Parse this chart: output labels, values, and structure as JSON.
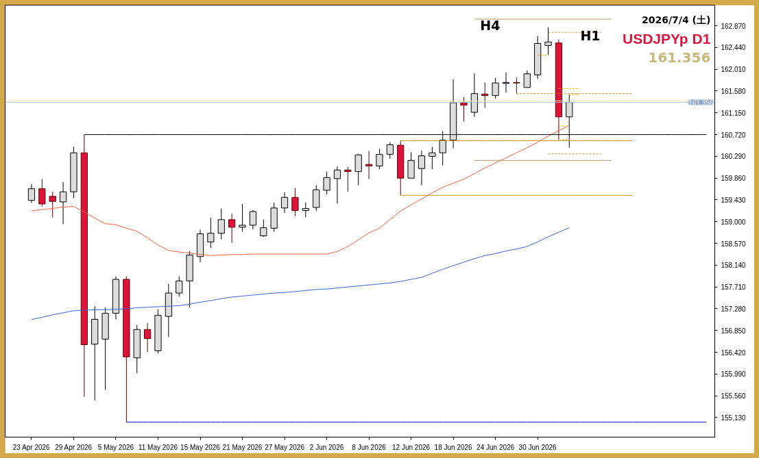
{
  "chart_data": {
    "type": "candlestick",
    "title": "USDJPYp D1",
    "subtitle": "2026/7/4 (土)",
    "annotations": [
      "161.356",
      "H4",
      "H1"
    ],
    "categories": [
      "23 Apr 2026",
      null,
      null,
      null,
      "29 Apr 2026",
      null,
      null,
      null,
      "5 May 2026",
      null,
      null,
      null,
      "11 May 2026",
      null,
      null,
      null,
      "15 May 2026",
      null,
      null,
      null,
      "21 May 2026",
      null,
      null,
      null,
      "27 May 2026",
      null,
      null,
      null,
      "2 Jun 2026",
      null,
      null,
      null,
      "8 Jun 2026",
      null,
      null,
      null,
      "12 Jun 2026",
      null,
      null,
      null,
      "18 Jun 2026",
      null,
      null,
      null,
      "24 Jun 2026",
      null,
      null,
      null,
      "30 Jun 2026",
      null,
      null,
      null,
      null,
      null,
      null,
      null,
      null,
      null,
      null,
      null,
      null,
      null,
      null,
      null,
      null
    ],
    "ohlc": [
      [
        159.42,
        159.74,
        159.37,
        159.65
      ],
      [
        159.65,
        159.84,
        159.3,
        159.35
      ],
      [
        159.5,
        159.59,
        159.09,
        159.4
      ],
      [
        159.39,
        159.78,
        158.95,
        159.59
      ],
      [
        159.59,
        160.48,
        159.46,
        160.36
      ],
      [
        160.36,
        160.72,
        155.54,
        156.57
      ],
      [
        156.58,
        157.33,
        155.47,
        157.07
      ],
      [
        156.68,
        157.31,
        155.68,
        157.19
      ],
      [
        157.19,
        157.92,
        157.07,
        157.86
      ],
      [
        157.86,
        157.92,
        155.04,
        156.33
      ],
      [
        156.31,
        156.96,
        156.01,
        156.87
      ],
      [
        156.87,
        157.0,
        156.42,
        156.69
      ],
      [
        156.45,
        157.27,
        156.4,
        157.15
      ],
      [
        157.13,
        157.77,
        156.72,
        157.59
      ],
      [
        157.59,
        157.92,
        157.52,
        157.83
      ],
      [
        157.83,
        158.42,
        157.3,
        158.34
      ],
      [
        158.31,
        158.84,
        158.2,
        158.76
      ],
      [
        158.6,
        159.08,
        158.48,
        158.77
      ],
      [
        158.77,
        159.26,
        158.65,
        159.04
      ],
      [
        159.04,
        159.16,
        158.58,
        158.89
      ],
      [
        158.89,
        159.35,
        158.8,
        158.93
      ],
      [
        158.93,
        159.23,
        158.85,
        159.2
      ],
      [
        158.72,
        159.04,
        158.7,
        158.88
      ],
      [
        158.87,
        159.38,
        158.8,
        159.27
      ],
      [
        159.27,
        159.58,
        159.17,
        159.48
      ],
      [
        159.48,
        159.66,
        159.11,
        159.22
      ],
      [
        159.22,
        159.38,
        159.09,
        159.26
      ],
      [
        159.28,
        159.72,
        159.21,
        159.63
      ],
      [
        159.62,
        159.99,
        159.54,
        159.87
      ],
      [
        159.85,
        160.09,
        159.36,
        160.02
      ],
      [
        160.02,
        160.08,
        159.59,
        159.99
      ],
      [
        159.99,
        160.34,
        159.72,
        160.32
      ],
      [
        160.13,
        160.4,
        159.84,
        160.1
      ],
      [
        160.1,
        160.44,
        160.04,
        160.33
      ],
      [
        160.33,
        160.57,
        160.24,
        160.52
      ],
      [
        160.51,
        160.6,
        159.52,
        159.86
      ],
      [
        159.86,
        160.37,
        159.86,
        160.21
      ],
      [
        160.05,
        160.4,
        159.72,
        160.3
      ],
      [
        160.29,
        160.48,
        160.04,
        160.36
      ],
      [
        160.36,
        160.79,
        160.11,
        160.61
      ],
      [
        160.61,
        161.81,
        160.45,
        161.35
      ],
      [
        161.35,
        161.46,
        160.98,
        161.3
      ],
      [
        161.16,
        161.93,
        161.07,
        161.53
      ],
      [
        161.52,
        161.75,
        161.25,
        161.49
      ],
      [
        161.49,
        161.84,
        161.43,
        161.74
      ],
      [
        161.73,
        161.95,
        161.55,
        161.75
      ],
      [
        161.75,
        161.85,
        161.53,
        161.74
      ],
      [
        161.65,
        161.99,
        161.65,
        161.92
      ],
      [
        161.9,
        162.67,
        161.82,
        162.52
      ],
      [
        162.48,
        162.84,
        162.29,
        162.55
      ],
      [
        162.53,
        162.6,
        160.62,
        161.07
      ],
      [
        161.07,
        161.51,
        160.46,
        161.356
      ],
      null,
      null,
      null,
      null,
      null,
      null,
      null,
      null,
      null,
      null,
      null,
      null,
      null
    ],
    "colors": [
      "#dcdcdc",
      "#dc143c",
      "#dc143c",
      "#dcdcdc",
      "#dcdcdc",
      "#dc143c",
      "#dcdcdc",
      "#dcdcdc",
      "#dcdcdc",
      "#dc143c",
      "#dcdcdc",
      "#dc143c",
      "#dcdcdc",
      "#dcdcdc",
      "#dcdcdc",
      "#dcdcdc",
      "#dcdcdc",
      "#dcdcdc",
      "#dcdcdc",
      "#dc143c",
      "#dcdcdc",
      "#dcdcdc",
      "#dcdcdc",
      "#dcdcdc",
      "#dcdcdc",
      "#dc143c",
      "#dcdcdc",
      "#dcdcdc",
      "#dcdcdc",
      "#dcdcdc",
      "#dc143c",
      "#dcdcdc",
      "#dc143c",
      "#dcdcdc",
      "#dcdcdc",
      "#dc143c",
      "#dcdcdc",
      "#dcdcdc",
      "#dcdcdc",
      "#dcdcdc",
      "#dcdcdc",
      "#dc143c",
      "#dcdcdc",
      "#dc143c",
      "#dcdcdc",
      "#dcdcdc",
      "#dc143c",
      "#dcdcdc",
      "#dcdcdc",
      "#dcdcdc",
      "#dc143c",
      "#dcdcdc",
      null,
      null,
      null,
      null,
      null,
      null,
      null,
      null,
      null,
      null,
      null,
      null,
      null
    ],
    "series": [
      {
        "type": "line",
        "color": "#ff5f3f",
        "values": [
          159.21,
          159.24,
          159.26,
          159.29,
          159.3,
          159.19,
          159.07,
          158.96,
          158.94,
          158.87,
          158.81,
          158.68,
          158.54,
          158.43,
          158.4,
          158.38,
          158.35,
          158.33,
          158.34,
          158.35,
          158.35,
          158.36,
          158.36,
          158.36,
          158.36,
          158.36,
          158.36,
          158.36,
          158.36,
          158.41,
          158.51,
          158.64,
          158.78,
          158.87,
          159.04,
          159.21,
          159.33,
          159.45,
          159.57,
          159.68,
          159.76,
          159.84,
          159.95,
          160.06,
          160.16,
          160.26,
          160.36,
          160.46,
          160.57,
          160.69,
          160.8,
          160.9,
          null,
          null,
          null,
          null,
          null,
          null,
          null,
          null,
          null,
          null,
          null,
          null,
          null
        ]
      },
      {
        "type": "line",
        "color": "#3c64dc",
        "values": [
          157.07,
          157.11,
          157.16,
          157.2,
          157.24,
          157.25,
          157.26,
          157.26,
          157.27,
          157.28,
          157.3,
          157.31,
          157.32,
          157.33,
          157.34,
          157.37,
          157.41,
          157.44,
          157.48,
          157.51,
          157.53,
          157.55,
          157.57,
          157.59,
          157.6,
          157.62,
          157.64,
          157.66,
          157.67,
          157.69,
          157.71,
          157.73,
          157.75,
          157.77,
          157.79,
          157.82,
          157.86,
          157.9,
          157.98,
          158.06,
          158.13,
          158.2,
          158.27,
          158.33,
          158.37,
          158.42,
          158.46,
          158.51,
          158.6,
          158.7,
          158.79,
          158.88,
          null,
          null,
          null,
          null,
          null,
          null,
          null,
          null,
          null,
          null,
          null,
          null,
          null
        ]
      },
      {
        "type": "line",
        "color": "#000000",
        "values": [
          null,
          null,
          null,
          null,
          null,
          160.72,
          160.72,
          160.72,
          160.72,
          160.72,
          160.72,
          160.72,
          160.72,
          160.72,
          160.72,
          160.72,
          160.72,
          160.72,
          160.72,
          160.72,
          160.72,
          160.72,
          160.72,
          160.72,
          160.72,
          160.72,
          160.72,
          160.72,
          160.72,
          160.72,
          160.72,
          160.72,
          160.72,
          160.72,
          160.72,
          160.72,
          160.72,
          160.72,
          160.72,
          160.72,
          160.72,
          160.72,
          160.72,
          160.72,
          160.72,
          160.72,
          160.72,
          160.72,
          160.72,
          160.72,
          160.72,
          160.72,
          160.72,
          160.72,
          160.72,
          160.72,
          160.72,
          160.72,
          160.72,
          160.72,
          160.72,
          160.72,
          160.72,
          160.72,
          160.72
        ]
      },
      {
        "type": "line",
        "color": "#0000c8",
        "values": [
          null,
          null,
          null,
          null,
          null,
          null,
          null,
          null,
          null,
          155.04,
          155.04,
          155.04,
          155.04,
          155.04,
          155.04,
          155.04,
          155.04,
          155.04,
          155.04,
          155.04,
          155.04,
          155.04,
          155.04,
          155.04,
          155.04,
          155.04,
          155.04,
          155.04,
          155.04,
          155.04,
          155.04,
          155.04,
          155.04,
          155.04,
          155.04,
          155.04,
          155.04,
          155.04,
          155.04,
          155.04,
          155.04,
          155.04,
          155.04,
          155.04,
          155.04,
          155.04,
          155.04,
          155.04,
          155.04,
          155.04,
          155.04,
          155.04,
          155.04,
          155.04,
          155.04,
          155.04,
          155.04,
          155.04,
          155.04,
          155.04,
          155.04,
          155.04,
          155.04,
          155.04,
          155.04
        ]
      },
      {
        "type": "line",
        "color": "#c8961e",
        "values": [
          null,
          null,
          null,
          null,
          null,
          null,
          null,
          null,
          null,
          null,
          null,
          null,
          null,
          null,
          null,
          null,
          null,
          null,
          null,
          null,
          null,
          null,
          null,
          null,
          null,
          null,
          null,
          null,
          null,
          null,
          null,
          null,
          null,
          null,
          null,
          160.6,
          160.6,
          160.6,
          160.6,
          160.6,
          160.6,
          160.6,
          160.6,
          160.6,
          160.6,
          160.6,
          160.6,
          160.6,
          160.6,
          160.6,
          160.6,
          160.6,
          160.6,
          160.6,
          160.6,
          160.6,
          160.6,
          160.6,
          null,
          null,
          null,
          null,
          null,
          null,
          null
        ]
      },
      {
        "type": "line",
        "color": "#c8961e",
        "values": [
          null,
          null,
          null,
          null,
          null,
          null,
          null,
          null,
          null,
          null,
          null,
          null,
          null,
          null,
          null,
          null,
          null,
          null,
          null,
          null,
          null,
          null,
          null,
          null,
          null,
          null,
          null,
          null,
          null,
          null,
          null,
          null,
          null,
          null,
          null,
          159.52,
          159.52,
          159.52,
          159.52,
          159.52,
          159.52,
          159.52,
          159.52,
          159.52,
          159.52,
          159.52,
          159.52,
          159.52,
          159.52,
          159.52,
          159.52,
          159.52,
          159.52,
          159.52,
          159.52,
          159.52,
          159.52,
          159.52,
          null,
          null,
          null,
          null,
          null,
          null,
          null
        ]
      },
      {
        "type": "line",
        "color": "#b8956a",
        "values": [
          null,
          null,
          null,
          null,
          null,
          null,
          null,
          null,
          null,
          null,
          null,
          null,
          null,
          null,
          null,
          null,
          null,
          null,
          null,
          null,
          null,
          null,
          null,
          null,
          null,
          null,
          null,
          null,
          null,
          null,
          null,
          null,
          null,
          null,
          null,
          null,
          null,
          null,
          null,
          null,
          null,
          null,
          163.0,
          163.0,
          163.0,
          163.0,
          163.0,
          163.0,
          163.0,
          163.0,
          163.0,
          163.0,
          163.0,
          163.0,
          163.0,
          163.0,
          null,
          null,
          null,
          null,
          null,
          null,
          null,
          null,
          null
        ]
      },
      {
        "type": "line",
        "color": "#b8956a",
        "values": [
          null,
          null,
          null,
          null,
          null,
          null,
          null,
          null,
          null,
          null,
          null,
          null,
          null,
          null,
          null,
          null,
          null,
          null,
          null,
          null,
          null,
          null,
          null,
          null,
          null,
          null,
          null,
          null,
          null,
          null,
          null,
          null,
          null,
          null,
          null,
          null,
          null,
          null,
          null,
          null,
          null,
          null,
          160.21,
          160.21,
          160.21,
          160.21,
          160.21,
          160.21,
          160.21,
          160.21,
          160.21,
          160.21,
          160.21,
          160.21,
          160.21,
          160.21,
          null,
          null,
          null,
          null,
          null,
          null,
          null,
          null,
          null
        ]
      },
      {
        "type": "line",
        "color": "#c09040",
        "line_style": "dashed",
        "values": [
          null,
          null,
          null,
          null,
          null,
          null,
          null,
          null,
          null,
          null,
          null,
          null,
          null,
          null,
          null,
          null,
          null,
          null,
          null,
          null,
          null,
          null,
          null,
          null,
          null,
          null,
          null,
          null,
          null,
          null,
          null,
          null,
          null,
          null,
          null,
          null,
          null,
          null,
          null,
          null,
          null,
          null,
          null,
          null,
          null,
          null,
          null,
          null,
          null,
          162.74,
          162.74,
          162.74,
          162.74,
          162.74,
          162.74,
          null,
          null,
          null,
          null,
          null,
          null,
          null,
          null,
          null,
          null
        ]
      },
      {
        "type": "line",
        "color": "#c09040",
        "line_style": "dashed",
        "values": [
          null,
          null,
          null,
          null,
          null,
          null,
          null,
          null,
          null,
          null,
          null,
          null,
          null,
          null,
          null,
          null,
          null,
          null,
          null,
          null,
          null,
          null,
          null,
          null,
          null,
          null,
          null,
          null,
          null,
          null,
          null,
          null,
          null,
          null,
          null,
          null,
          null,
          null,
          null,
          null,
          null,
          null,
          null,
          null,
          null,
          null,
          null,
          null,
          null,
          160.34,
          160.34,
          160.34,
          160.34,
          160.34,
          160.34,
          null,
          null,
          null,
          null,
          null,
          null,
          null,
          null,
          null,
          null
        ]
      },
      {
        "type": "line",
        "color": "#b8860b",
        "line_style": "dashed",
        "values": [
          null,
          null,
          null,
          null,
          null,
          null,
          null,
          null,
          null,
          null,
          null,
          null,
          null,
          null,
          null,
          null,
          null,
          null,
          null,
          null,
          null,
          null,
          null,
          null,
          null,
          null,
          null,
          null,
          null,
          null,
          null,
          null,
          null,
          null,
          null,
          null,
          null,
          null,
          null,
          null,
          null,
          null,
          null,
          null,
          null,
          null,
          161.53,
          161.53,
          161.53,
          161.53,
          161.53,
          161.53,
          161.53,
          161.53,
          161.53,
          161.53,
          161.53,
          161.53,
          null,
          null,
          null,
          null,
          null,
          null,
          null
        ]
      },
      {
        "type": "line",
        "color": "#ffa500",
        "line_style": "dashed",
        "values": [
          null,
          null,
          null,
          null,
          null,
          null,
          null,
          null,
          null,
          null,
          null,
          null,
          null,
          null,
          null,
          null,
          null,
          null,
          null,
          null,
          null,
          null,
          null,
          null,
          null,
          null,
          null,
          null,
          null,
          null,
          null,
          null,
          null,
          null,
          null,
          null,
          null,
          null,
          null,
          null,
          null,
          null,
          null,
          null,
          null,
          null,
          null,
          null,
          null,
          null,
          161.63,
          161.63,
          161.63,
          null,
          null,
          null,
          null,
          null,
          null,
          null,
          null,
          null,
          null,
          null,
          null
        ]
      },
      {
        "type": "line",
        "color": "#ffa500",
        "line_style": "dashed",
        "values": [
          null,
          null,
          null,
          null,
          null,
          null,
          null,
          null,
          null,
          null,
          null,
          null,
          null,
          null,
          null,
          null,
          null,
          null,
          null,
          null,
          null,
          null,
          null,
          null,
          null,
          null,
          null,
          null,
          null,
          null,
          null,
          null,
          null,
          null,
          null,
          null,
          null,
          null,
          null,
          null,
          null,
          null,
          null,
          null,
          null,
          null,
          null,
          null,
          null,
          null,
          null,
          161.51,
          161.51,
          null,
          null,
          null,
          null,
          null,
          null,
          null,
          null,
          null,
          null,
          null,
          null
        ]
      },
      {
        "type": "line",
        "color": "#ffa500",
        "line_style": "dashed",
        "values": [
          null,
          null,
          null,
          null,
          null,
          null,
          null,
          null,
          null,
          null,
          null,
          null,
          null,
          null,
          null,
          null,
          null,
          null,
          null,
          null,
          null,
          null,
          null,
          null,
          null,
          null,
          null,
          null,
          null,
          null,
          null,
          null,
          null,
          null,
          null,
          null,
          null,
          null,
          null,
          null,
          null,
          null,
          null,
          null,
          null,
          null,
          null,
          null,
          162.29,
          162.29,
          null,
          null,
          null,
          null,
          null,
          null,
          null,
          null,
          null,
          null,
          null,
          null,
          null,
          null,
          null
        ]
      },
      {
        "type": "line",
        "color": "#ffa500",
        "line_style": "dashed",
        "values": [
          null,
          null,
          null,
          null,
          null,
          null,
          null,
          null,
          null,
          null,
          null,
          null,
          null,
          null,
          null,
          null,
          null,
          null,
          null,
          null,
          null,
          null,
          null,
          null,
          null,
          null,
          null,
          null,
          null,
          null,
          null,
          null,
          null,
          null,
          null,
          null,
          null,
          null,
          null,
          null,
          null,
          null,
          null,
          null,
          null,
          null,
          null,
          null,
          null,
          null,
          160.89,
          160.89,
          null,
          null,
          null,
          null,
          null,
          null,
          null,
          null,
          null,
          null,
          null,
          null,
          null
        ]
      },
      {
        "type": "line",
        "color": "#ffa500",
        "line_style": "dashed",
        "values": [
          null,
          null,
          null,
          null,
          null,
          null,
          null,
          null,
          null,
          null,
          null,
          null,
          null,
          null,
          null,
          null,
          null,
          null,
          null,
          null,
          null,
          null,
          null,
          null,
          null,
          null,
          null,
          null,
          null,
          null,
          null,
          null,
          null,
          null,
          null,
          null,
          null,
          null,
          null,
          null,
          null,
          null,
          null,
          null,
          null,
          null,
          null,
          null,
          null,
          null,
          160.62,
          160.62,
          null,
          null,
          null,
          null,
          null,
          null,
          null,
          null,
          null,
          null,
          null,
          null,
          null
        ]
      }
    ],
    "ref_lines": [
      {
        "axis": "y",
        "value": 161.386,
        "label": null,
        "color": "#f0e6b4"
      },
      {
        "axis": "y",
        "value": 161.356,
        "label": "161.356",
        "color": "#b0c4de"
      }
    ],
    "ylim": [
      154.744,
      163.277
    ],
    "yticks": [
      {
        "value": 155.13,
        "label": "155.130"
      },
      {
        "value": 155.56,
        "label": "155.560"
      },
      {
        "value": 155.99,
        "label": "155.990"
      },
      {
        "value": 156.42,
        "label": "156.420"
      },
      {
        "value": 156.85,
        "label": "156.850"
      },
      {
        "value": 157.28,
        "label": "157.280"
      },
      {
        "value": 157.71,
        "label": "157.710"
      },
      {
        "value": 158.14,
        "label": "158.140"
      },
      {
        "value": 158.57,
        "label": "158.570"
      },
      {
        "value": 159.0,
        "label": "159.000"
      },
      {
        "value": 159.43,
        "label": "159.430"
      },
      {
        "value": 159.86,
        "label": "159.860"
      },
      {
        "value": 160.29,
        "label": "160.290"
      },
      {
        "value": 160.72,
        "label": "160.720"
      },
      {
        "value": 161.15,
        "label": "161.150"
      },
      {
        "value": 161.58,
        "label": "161.580"
      },
      {
        "value": 162.01,
        "label": "162.010"
      },
      {
        "value": 162.44,
        "label": "162.440"
      },
      {
        "value": 162.87,
        "label": "162.870"
      }
    ]
  }
}
